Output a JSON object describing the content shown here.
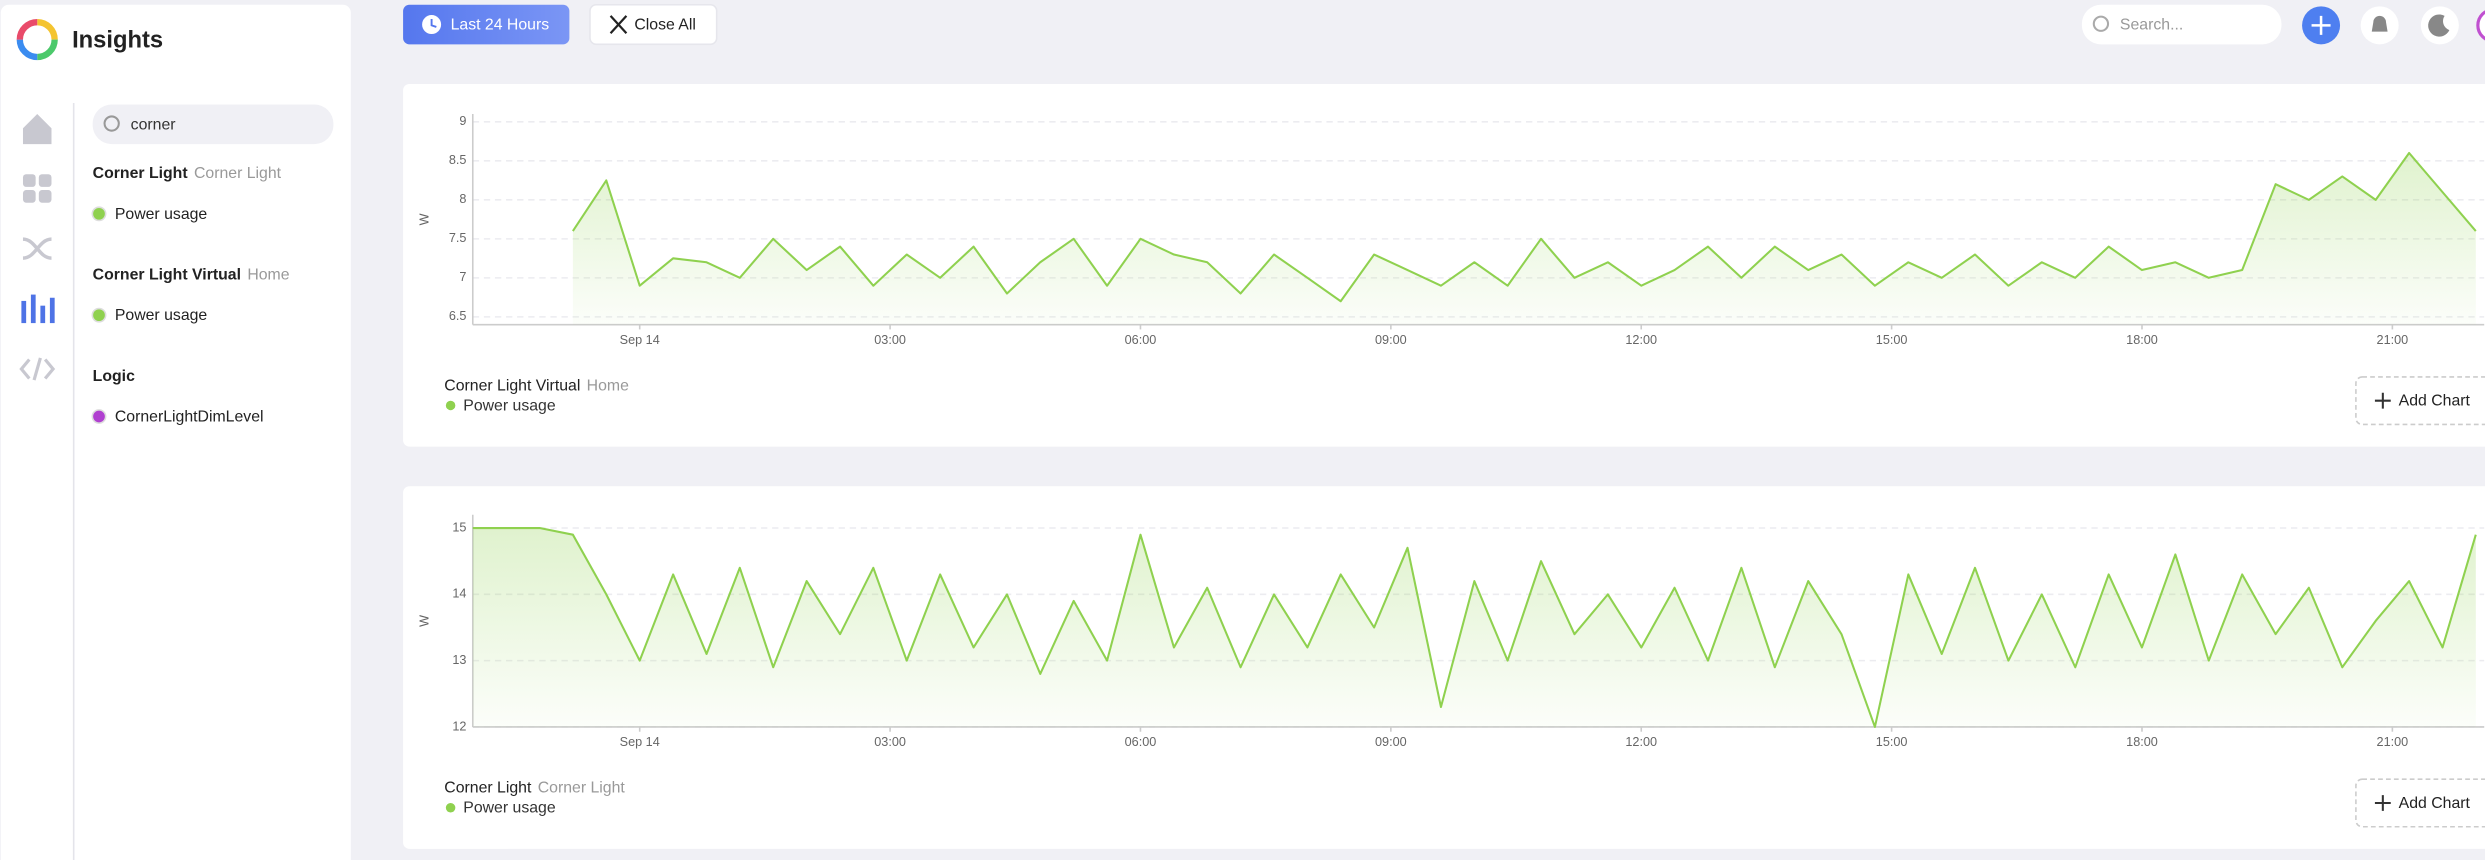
{
  "sidebar": {
    "app_title": "Insights",
    "search": "corner",
    "groups": [
      {
        "name": "Corner Light",
        "location": "Corner Light",
        "items": [
          "Power usage"
        ]
      },
      {
        "name": "Corner Light Virtual",
        "location": "Home",
        "items": [
          "Power usage"
        ]
      },
      {
        "name": "Logic",
        "items": [
          "CornerLightDimLevel"
        ]
      }
    ]
  },
  "topbar": {
    "range_button": "Last 24 Hours",
    "close_button": "Close All",
    "search_placeholder": "Search..."
  },
  "chart_data": [
    {
      "type": "line",
      "ylabel": "W",
      "device": "Corner Light Virtual",
      "location": "Home",
      "button": "Add Chart",
      "xlim": [
        -2,
        22.1
      ],
      "xticks": [
        {
          "value": 0,
          "label": "Sep 14"
        },
        {
          "value": 3,
          "label": "03:00"
        },
        {
          "value": 6,
          "label": "06:00"
        },
        {
          "value": 9,
          "label": "09:00"
        },
        {
          "value": 12,
          "label": "12:00"
        },
        {
          "value": 15,
          "label": "15:00"
        },
        {
          "value": 18,
          "label": "18:00"
        },
        {
          "value": 21,
          "label": "21:00"
        }
      ],
      "ylim": [
        6.4,
        9.1
      ],
      "yticks": [
        6.5,
        7,
        7.5,
        8,
        8.5,
        9
      ],
      "grid": true,
      "x": [
        -0.8,
        -0.4,
        0,
        0.4,
        0.8,
        1.2,
        1.6,
        2,
        2.4,
        2.8,
        3.2,
        3.6,
        4,
        4.4,
        4.8,
        5.2,
        5.6,
        6,
        6.4,
        6.8,
        7.2,
        7.6,
        8,
        8.4,
        8.8,
        9.2,
        9.6,
        10,
        10.4,
        10.8,
        11.2,
        11.6,
        12,
        12.4,
        12.8,
        13.2,
        13.6,
        14,
        14.4,
        14.8,
        15.2,
        15.6,
        16,
        16.4,
        16.8,
        17.2,
        17.6,
        18,
        18.4,
        18.8,
        19.2,
        19.6,
        20,
        20.4,
        20.8,
        21.2,
        21.6,
        22
      ],
      "series": [
        {
          "name": "Power usage",
          "color": "#8fd14f",
          "values": [
            7.6,
            8.25,
            6.9,
            7.25,
            7.2,
            7.0,
            7.5,
            7.1,
            7.4,
            6.9,
            7.3,
            7.0,
            7.4,
            6.8,
            7.2,
            7.5,
            6.9,
            7.5,
            7.3,
            7.2,
            6.8,
            7.3,
            7.0,
            6.7,
            7.3,
            7.1,
            6.9,
            7.2,
            6.9,
            7.5,
            7.0,
            7.2,
            6.9,
            7.1,
            7.4,
            7.0,
            7.4,
            7.1,
            7.3,
            6.9,
            7.2,
            7.0,
            7.3,
            6.9,
            7.2,
            7.0,
            7.4,
            7.1,
            7.2,
            7.0,
            7.1,
            8.2,
            8.0,
            8.3,
            8.0,
            8.6,
            8.1,
            7.6
          ]
        }
      ]
    },
    {
      "type": "line",
      "ylabel": "W",
      "device": "Corner Light",
      "location": "Corner Light",
      "button": "Add Chart",
      "xlim": [
        -2,
        22.1
      ],
      "xticks": [
        {
          "value": 0,
          "label": "Sep 14"
        },
        {
          "value": 3,
          "label": "03:00"
        },
        {
          "value": 6,
          "label": "06:00"
        },
        {
          "value": 9,
          "label": "09:00"
        },
        {
          "value": 12,
          "label": "12:00"
        },
        {
          "value": 15,
          "label": "15:00"
        },
        {
          "value": 18,
          "label": "18:00"
        },
        {
          "value": 21,
          "label": "21:00"
        }
      ],
      "ylim": [
        12,
        15.2
      ],
      "yticks": [
        12,
        13,
        14,
        15
      ],
      "grid": true,
      "x": [
        -2,
        -1.6,
        -1.2,
        -0.8,
        -0.4,
        0,
        0.4,
        0.8,
        1.2,
        1.6,
        2,
        2.4,
        2.8,
        3.2,
        3.6,
        4,
        4.4,
        4.8,
        5.2,
        5.6,
        6,
        6.4,
        6.8,
        7.2,
        7.6,
        8,
        8.4,
        8.8,
        9.2,
        9.6,
        10,
        10.4,
        10.8,
        11.2,
        11.6,
        12,
        12.4,
        12.8,
        13.2,
        13.6,
        14,
        14.4,
        14.8,
        15.2,
        15.6,
        16,
        16.4,
        16.8,
        17.2,
        17.6,
        18,
        18.4,
        18.8,
        19.2,
        19.6,
        20,
        20.4,
        20.8,
        21.2,
        21.6,
        22
      ],
      "series": [
        {
          "name": "Power usage",
          "color": "#8fd14f",
          "values": [
            15,
            15,
            15,
            14.9,
            14.0,
            13.0,
            14.3,
            13.1,
            14.4,
            12.9,
            14.2,
            13.4,
            14.4,
            13.0,
            14.3,
            13.2,
            14.0,
            12.8,
            13.9,
            13.0,
            14.9,
            13.2,
            14.1,
            12.9,
            14.0,
            13.2,
            14.3,
            13.5,
            14.7,
            12.3,
            14.2,
            13.0,
            14.5,
            13.4,
            14.0,
            13.2,
            14.1,
            13.0,
            14.4,
            12.9,
            14.2,
            13.4,
            12.0,
            14.3,
            13.1,
            14.4,
            13.0,
            14.0,
            12.9,
            14.3,
            13.2,
            14.6,
            13.0,
            14.3,
            13.4,
            14.1,
            12.9,
            13.6,
            14.2,
            13.2,
            14.9
          ]
        }
      ]
    }
  ]
}
